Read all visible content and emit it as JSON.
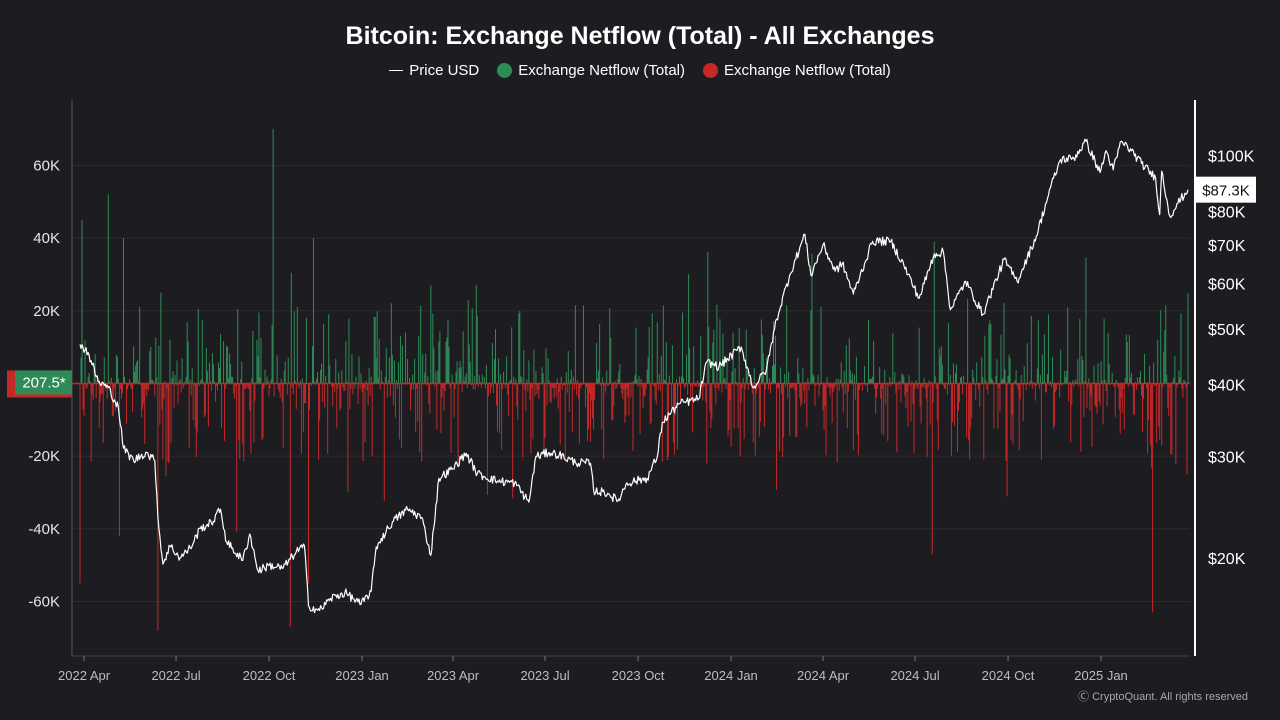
{
  "title": "Bitcoin: Exchange Netflow (Total) - All Exchanges",
  "legend": {
    "price": "Price USD",
    "inflow": "Exchange Netflow (Total)",
    "outflow": "Exchange Netflow (Total)"
  },
  "colors": {
    "background": "#1d1d21",
    "price": "#ffffff",
    "inflow": "#2e8b57",
    "outflow": "#c62828",
    "grid": "#2b2b30"
  },
  "badges": {
    "netflow_current": "207.5*",
    "price_current": "$87.3K"
  },
  "copyright": "Ⓒ CryptoQuant. All rights reserved",
  "chart_data": {
    "type": "bar+line",
    "x_ticks": [
      "2022 Apr",
      "2022 Jul",
      "2022 Oct",
      "2023 Jan",
      "2023 Apr",
      "2023 Jul",
      "2023 Oct",
      "2024 Jan",
      "2024 Apr",
      "2024 Jul",
      "2024 Oct",
      "2025 Jan"
    ],
    "x_range": [
      "2022-03-28",
      "2025-03-28"
    ],
    "left_axis": {
      "label": "",
      "ticks": [
        60000,
        40000,
        20000,
        0,
        -20000,
        -40000,
        -60000
      ],
      "tick_labels": [
        "60K",
        "40K",
        "20K",
        "",
        "-20K",
        "-40K",
        "-60K"
      ],
      "range": [
        -75000,
        78000
      ]
    },
    "right_axis": {
      "label": "",
      "scale": "log",
      "ticks": [
        100000,
        80000,
        70000,
        60000,
        50000,
        40000,
        30000,
        20000
      ],
      "tick_labels": [
        "$100K",
        "$80K",
        "$70K",
        "$60K",
        "$50K",
        "$40K",
        "$30K",
        "$20K"
      ],
      "range": [
        13500,
        125000
      ]
    },
    "price_series": {
      "name": "Price USD",
      "points": [
        [
          "2022-03-28",
          47000
        ],
        [
          "2022-04-05",
          45500
        ],
        [
          "2022-04-15",
          40500
        ],
        [
          "2022-04-25",
          39500
        ],
        [
          "2022-05-05",
          36500
        ],
        [
          "2022-05-10",
          31000
        ],
        [
          "2022-05-20",
          29500
        ],
        [
          "2022-06-01",
          30500
        ],
        [
          "2022-06-10",
          29500
        ],
        [
          "2022-06-14",
          22500
        ],
        [
          "2022-06-18",
          19500
        ],
        [
          "2022-06-25",
          21000
        ],
        [
          "2022-07-05",
          20000
        ],
        [
          "2022-07-15",
          20800
        ],
        [
          "2022-07-25",
          22500
        ],
        [
          "2022-08-05",
          23000
        ],
        [
          "2022-08-14",
          24300
        ],
        [
          "2022-08-20",
          21300
        ],
        [
          "2022-09-05",
          19800
        ],
        [
          "2022-09-12",
          22000
        ],
        [
          "2022-09-20",
          19000
        ],
        [
          "2022-10-01",
          19400
        ],
        [
          "2022-10-15",
          19200
        ],
        [
          "2022-10-28",
          20500
        ],
        [
          "2022-11-05",
          21000
        ],
        [
          "2022-11-09",
          16500
        ],
        [
          "2022-11-20",
          16200
        ],
        [
          "2022-12-01",
          17000
        ],
        [
          "2022-12-15",
          17400
        ],
        [
          "2022-12-31",
          16600
        ],
        [
          "2023-01-10",
          17500
        ],
        [
          "2023-01-15",
          20900
        ],
        [
          "2023-01-31",
          23100
        ],
        [
          "2023-02-15",
          24300
        ],
        [
          "2023-03-01",
          23500
        ],
        [
          "2023-03-10",
          20200
        ],
        [
          "2023-03-18",
          27500
        ],
        [
          "2023-03-31",
          28500
        ],
        [
          "2023-04-14",
          30400
        ],
        [
          "2023-04-25",
          28000
        ],
        [
          "2023-05-15",
          27200
        ],
        [
          "2023-06-01",
          27000
        ],
        [
          "2023-06-15",
          25000
        ],
        [
          "2023-06-22",
          30000
        ],
        [
          "2023-07-05",
          30500
        ],
        [
          "2023-07-15",
          30200
        ],
        [
          "2023-07-31",
          29300
        ],
        [
          "2023-08-15",
          29200
        ],
        [
          "2023-08-18",
          26200
        ],
        [
          "2023-09-01",
          25900
        ],
        [
          "2023-09-11",
          25100
        ],
        [
          "2023-09-20",
          27000
        ],
        [
          "2023-10-10",
          27500
        ],
        [
          "2023-10-20",
          30000
        ],
        [
          "2023-10-25",
          34400
        ],
        [
          "2023-11-10",
          37000
        ],
        [
          "2023-11-30",
          37800
        ],
        [
          "2023-12-08",
          43800
        ],
        [
          "2023-12-20",
          43000
        ],
        [
          "2024-01-11",
          46500
        ],
        [
          "2024-01-23",
          39500
        ],
        [
          "2024-02-05",
          42500
        ],
        [
          "2024-02-15",
          52000
        ],
        [
          "2024-02-28",
          62000
        ],
        [
          "2024-03-14",
          73000
        ],
        [
          "2024-03-20",
          62000
        ],
        [
          "2024-04-01",
          70000
        ],
        [
          "2024-04-13",
          63000
        ],
        [
          "2024-04-20",
          65000
        ],
        [
          "2024-05-01",
          57500
        ],
        [
          "2024-05-20",
          71000
        ],
        [
          "2024-06-07",
          71000
        ],
        [
          "2024-06-20",
          64500
        ],
        [
          "2024-07-05",
          56500
        ],
        [
          "2024-07-20",
          67500
        ],
        [
          "2024-07-29",
          68000
        ],
        [
          "2024-08-05",
          54000
        ],
        [
          "2024-08-20",
          60500
        ],
        [
          "2024-09-06",
          53000
        ],
        [
          "2024-09-27",
          66000
        ],
        [
          "2024-10-10",
          60500
        ],
        [
          "2024-10-29",
          72500
        ],
        [
          "2024-11-12",
          88000
        ],
        [
          "2024-11-22",
          98500
        ],
        [
          "2024-12-05",
          99000
        ],
        [
          "2024-12-17",
          106000
        ],
        [
          "2024-12-31",
          93500
        ],
        [
          "2025-01-06",
          102000
        ],
        [
          "2025-01-13",
          94500
        ],
        [
          "2025-01-21",
          106000
        ],
        [
          "2025-01-31",
          102000
        ],
        [
          "2025-02-10",
          97000
        ],
        [
          "2025-02-24",
          91500
        ],
        [
          "2025-02-28",
          79000
        ],
        [
          "2025-03-02",
          94000
        ],
        [
          "2025-03-10",
          78500
        ],
        [
          "2025-03-18",
          82700
        ],
        [
          "2025-03-28",
          87300
        ]
      ]
    },
    "netflow_series": {
      "name": "Exchange Netflow (Total)",
      "inflow_color": "#2e8b57",
      "outflow_color": "#c62828",
      "notable_spikes": [
        [
          "2022-03-28",
          -55000
        ],
        [
          "2022-03-30",
          45000
        ],
        [
          "2022-04-25",
          52000
        ],
        [
          "2022-05-06",
          -42000
        ],
        [
          "2022-05-10",
          40000
        ],
        [
          "2022-06-13",
          -68000
        ],
        [
          "2022-06-16",
          25000
        ],
        [
          "2022-10-05",
          70000
        ],
        [
          "2022-10-22",
          -67000
        ],
        [
          "2022-11-09",
          -55000
        ],
        [
          "2022-11-14",
          40000
        ],
        [
          "2023-03-10",
          27000
        ],
        [
          "2023-07-01",
          -15000
        ],
        [
          "2023-11-20",
          30000
        ],
        [
          "2024-07-18",
          -47000
        ],
        [
          "2024-07-20",
          39000
        ],
        [
          "2025-02-21",
          -63000
        ],
        [
          "2025-03-27",
          -25000
        ]
      ],
      "current_value": 207.5
    }
  }
}
